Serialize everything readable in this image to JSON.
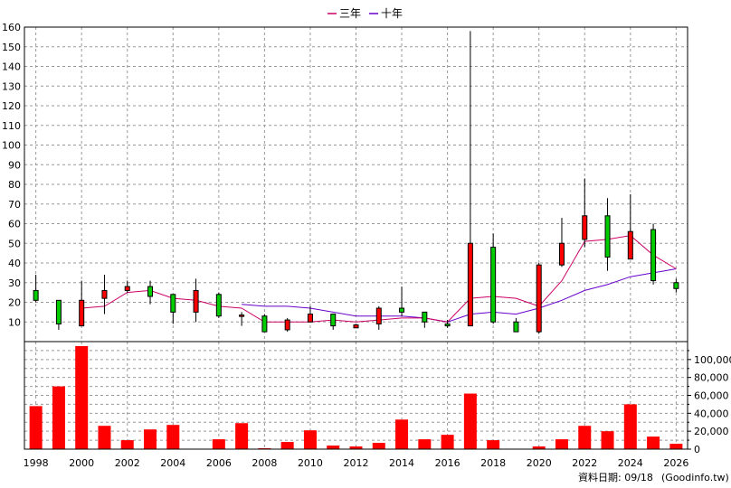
{
  "chart_data": {
    "type": "candlestick+bar",
    "legend": [
      {
        "label": "三年",
        "color": "#cc0066"
      },
      {
        "label": "十年",
        "color": "#6600cc"
      }
    ],
    "price_axis": {
      "ylim": [
        0,
        160
      ],
      "ticks": [
        10,
        20,
        30,
        40,
        50,
        60,
        70,
        80,
        90,
        100,
        110,
        120,
        130,
        140,
        150,
        160
      ]
    },
    "volume_axis": {
      "ylim": [
        0,
        120000
      ],
      "ticks": [
        {
          "v": 0,
          "label": "0"
        },
        {
          "v": 20000,
          "label": "20,000"
        },
        {
          "v": 40000,
          "label": "40,000"
        },
        {
          "v": 60000,
          "label": "60,000"
        },
        {
          "v": 80000,
          "label": "80,000"
        },
        {
          "v": 100000,
          "label": "100,000"
        }
      ]
    },
    "x_range": [
      1997.5,
      2026.5
    ],
    "x_ticks": [
      1998,
      2000,
      2002,
      2004,
      2006,
      2008,
      2010,
      2012,
      2014,
      2016,
      2018,
      2020,
      2022,
      2024,
      2026
    ],
    "candles": [
      {
        "year": 1998,
        "open": 21,
        "close": 26,
        "high": 34,
        "low": 20,
        "color": "green"
      },
      {
        "year": 1999,
        "open": 21,
        "close": 9,
        "high": 21,
        "low": 6,
        "color": "green"
      },
      {
        "year": 2000,
        "open": 8,
        "close": 21,
        "high": 31,
        "low": 8,
        "color": "red"
      },
      {
        "year": 2001,
        "open": 22,
        "close": 26,
        "high": 34,
        "low": 14,
        "color": "red"
      },
      {
        "year": 2002,
        "open": 26,
        "close": 28,
        "high": 31,
        "low": 25,
        "color": "red"
      },
      {
        "year": 2003,
        "open": 28,
        "close": 23,
        "high": 31,
        "low": 19,
        "color": "green"
      },
      {
        "year": 2004,
        "open": 24,
        "close": 15,
        "high": 24,
        "low": 9,
        "color": "green"
      },
      {
        "year": 2005,
        "open": 15,
        "close": 26,
        "high": 32,
        "low": 10,
        "color": "red"
      },
      {
        "year": 2006,
        "open": 24,
        "close": 13,
        "high": 25,
        "low": 12,
        "color": "green"
      },
      {
        "year": 2007,
        "open": 13,
        "close": 13.5,
        "high": 15,
        "low": 8,
        "color": "red"
      },
      {
        "year": 2008,
        "open": 13,
        "close": 5,
        "high": 14,
        "low": 5,
        "color": "green"
      },
      {
        "year": 2009,
        "open": 6,
        "close": 11,
        "high": 12,
        "low": 5,
        "color": "red"
      },
      {
        "year": 2010,
        "open": 10,
        "close": 14,
        "high": 18,
        "low": 10,
        "color": "red"
      },
      {
        "year": 2011,
        "open": 14,
        "close": 8,
        "high": 14,
        "low": 6,
        "color": "green"
      },
      {
        "year": 2012,
        "open": 7,
        "close": 8.5,
        "high": 9,
        "low": 7,
        "color": "red"
      },
      {
        "year": 2013,
        "open": 9,
        "close": 17,
        "high": 18,
        "low": 6,
        "color": "red"
      },
      {
        "year": 2014,
        "open": 15,
        "close": 17,
        "high": 28,
        "low": 13,
        "color": "green"
      },
      {
        "year": 2015,
        "open": 15,
        "close": 10,
        "high": 15,
        "low": 7,
        "color": "green"
      },
      {
        "year": 2016,
        "open": 8,
        "close": 9,
        "high": 11,
        "low": 7,
        "color": "green"
      },
      {
        "year": 2017,
        "open": 8,
        "close": 50,
        "high": 158,
        "low": 8,
        "color": "red"
      },
      {
        "year": 2018,
        "open": 48,
        "close": 10,
        "high": 55,
        "low": 9,
        "color": "green"
      },
      {
        "year": 2019,
        "open": 10,
        "close": 5,
        "high": 12,
        "low": 5,
        "color": "green"
      },
      {
        "year": 2020,
        "open": 5,
        "close": 39,
        "high": 40,
        "low": 4,
        "color": "red"
      },
      {
        "year": 2021,
        "open": 39,
        "close": 50,
        "high": 63,
        "low": 38,
        "color": "red"
      },
      {
        "year": 2022,
        "open": 52,
        "close": 64,
        "high": 83,
        "low": 48,
        "color": "red"
      },
      {
        "year": 2023,
        "open": 64,
        "close": 43,
        "high": 73,
        "low": 36,
        "color": "green"
      },
      {
        "year": 2024,
        "open": 42,
        "close": 56,
        "high": 75,
        "low": 42,
        "color": "red"
      },
      {
        "year": 2025,
        "open": 57,
        "close": 31,
        "high": 60,
        "low": 29,
        "color": "green"
      },
      {
        "year": 2026,
        "open": 30,
        "close": 27,
        "high": 32,
        "low": 25,
        "color": "green"
      }
    ],
    "ma3": [
      {
        "year": 2000,
        "value": 17
      },
      {
        "year": 2001,
        "value": 18
      },
      {
        "year": 2002,
        "value": 25
      },
      {
        "year": 2003,
        "value": 26
      },
      {
        "year": 2004,
        "value": 22
      },
      {
        "year": 2005,
        "value": 21
      },
      {
        "year": 2006,
        "value": 18
      },
      {
        "year": 2007,
        "value": 17
      },
      {
        "year": 2008,
        "value": 10
      },
      {
        "year": 2009,
        "value": 10
      },
      {
        "year": 2010,
        "value": 10
      },
      {
        "year": 2011,
        "value": 11
      },
      {
        "year": 2012,
        "value": 10
      },
      {
        "year": 2013,
        "value": 11
      },
      {
        "year": 2014,
        "value": 12
      },
      {
        "year": 2015,
        "value": 12
      },
      {
        "year": 2016,
        "value": 10
      },
      {
        "year": 2017,
        "value": 22
      },
      {
        "year": 2018,
        "value": 23
      },
      {
        "year": 2019,
        "value": 22
      },
      {
        "year": 2020,
        "value": 18
      },
      {
        "year": 2021,
        "value": 31
      },
      {
        "year": 2022,
        "value": 51
      },
      {
        "year": 2023,
        "value": 52
      },
      {
        "year": 2024,
        "value": 54
      },
      {
        "year": 2025,
        "value": 44
      },
      {
        "year": 2026,
        "value": 37
      }
    ],
    "ma10": [
      {
        "year": 2007,
        "value": 19
      },
      {
        "year": 2008,
        "value": 18
      },
      {
        "year": 2009,
        "value": 18
      },
      {
        "year": 2010,
        "value": 17
      },
      {
        "year": 2011,
        "value": 15
      },
      {
        "year": 2012,
        "value": 13
      },
      {
        "year": 2013,
        "value": 13
      },
      {
        "year": 2014,
        "value": 13
      },
      {
        "year": 2015,
        "value": 12
      },
      {
        "year": 2016,
        "value": 10
      },
      {
        "year": 2017,
        "value": 14
      },
      {
        "year": 2018,
        "value": 15
      },
      {
        "year": 2019,
        "value": 14
      },
      {
        "year": 2020,
        "value": 17
      },
      {
        "year": 2021,
        "value": 21
      },
      {
        "year": 2022,
        "value": 26
      },
      {
        "year": 2023,
        "value": 29
      },
      {
        "year": 2024,
        "value": 33
      },
      {
        "year": 2025,
        "value": 35
      },
      {
        "year": 2026,
        "value": 37
      }
    ],
    "volume": [
      {
        "year": 1998,
        "value": 48000
      },
      {
        "year": 1999,
        "value": 70000
      },
      {
        "year": 2000,
        "value": 115000
      },
      {
        "year": 2001,
        "value": 26000
      },
      {
        "year": 2002,
        "value": 10000
      },
      {
        "year": 2003,
        "value": 22000
      },
      {
        "year": 2004,
        "value": 27000
      },
      {
        "year": 2005,
        "value": 500
      },
      {
        "year": 2006,
        "value": 11000
      },
      {
        "year": 2007,
        "value": 29000
      },
      {
        "year": 2008,
        "value": 1000
      },
      {
        "year": 2009,
        "value": 8000
      },
      {
        "year": 2010,
        "value": 21000
      },
      {
        "year": 2011,
        "value": 4000
      },
      {
        "year": 2012,
        "value": 3000
      },
      {
        "year": 2013,
        "value": 7000
      },
      {
        "year": 2014,
        "value": 33000
      },
      {
        "year": 2015,
        "value": 11000
      },
      {
        "year": 2016,
        "value": 16000
      },
      {
        "year": 2017,
        "value": 62000
      },
      {
        "year": 2018,
        "value": 10000
      },
      {
        "year": 2019,
        "value": 500
      },
      {
        "year": 2020,
        "value": 3000
      },
      {
        "year": 2021,
        "value": 11000
      },
      {
        "year": 2022,
        "value": 26000
      },
      {
        "year": 2023,
        "value": 20000
      },
      {
        "year": 2024,
        "value": 50000
      },
      {
        "year": 2025,
        "value": 14000
      },
      {
        "year": 2026,
        "value": 6000
      }
    ],
    "grid": true
  },
  "footer": {
    "date_label": "資料日期: 09/18",
    "source": "(Goodinfo.tw)"
  },
  "colors": {
    "up": "#ff0000",
    "down": "#00cc00",
    "volume": "#ff0000",
    "grid": "#999999"
  }
}
